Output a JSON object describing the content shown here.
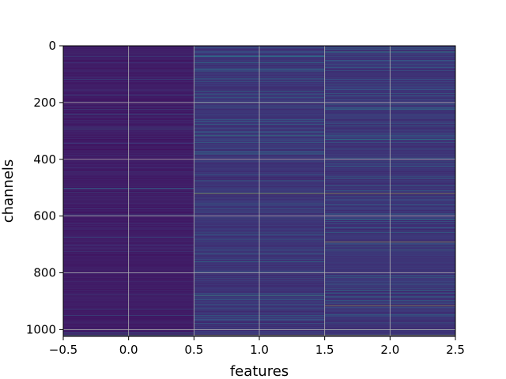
{
  "chart_data": {
    "type": "heatmap",
    "title": "",
    "xlabel": "features",
    "ylabel": "channels",
    "xlim": [
      -0.5,
      2.5
    ],
    "ylim": [
      1024,
      0
    ],
    "x_ticks": [
      -0.5,
      0.0,
      0.5,
      1.0,
      1.5,
      2.0,
      2.5
    ],
    "x_tick_labels": [
      "−0.5",
      "0.0",
      "0.5",
      "1.0",
      "1.5",
      "2.0",
      "2.5"
    ],
    "y_ticks": [
      0,
      200,
      400,
      600,
      800,
      1000
    ],
    "y_tick_labels": [
      "0",
      "200",
      "400",
      "600",
      "800",
      "1000"
    ],
    "grid": true,
    "colormap": "viridis",
    "n_channels": 1024,
    "columns": [
      0,
      1,
      2
    ],
    "column_base_level": [
      0.05,
      0.12,
      0.12
    ],
    "highlights": [
      {
        "channel": 20,
        "column": 1,
        "value": 0.4
      },
      {
        "channel": 20,
        "column": 2,
        "value": 0.55
      },
      {
        "channel": 65,
        "column": 2,
        "value": 0.35
      },
      {
        "channel": 160,
        "column": 1,
        "value": 0.5
      },
      {
        "channel": 175,
        "column": 2,
        "value": 0.45
      },
      {
        "channel": 315,
        "column": 1,
        "value": 0.55
      },
      {
        "channel": 320,
        "column": 2,
        "value": 0.4
      },
      {
        "channel": 515,
        "column": 0,
        "value": 0.3
      },
      {
        "channel": 520,
        "column": 1,
        "value": 0.95
      },
      {
        "channel": 520,
        "column": 2,
        "value": 0.95
      },
      {
        "channel": 560,
        "column": 1,
        "value": 0.4
      },
      {
        "channel": 595,
        "column": 0,
        "value": 0.35
      },
      {
        "channel": 600,
        "column": 1,
        "value": 0.5
      },
      {
        "channel": 600,
        "column": 2,
        "value": 0.45
      },
      {
        "channel": 690,
        "column": 2,
        "value": 0.95
      },
      {
        "channel": 720,
        "column": 2,
        "value": 0.55
      },
      {
        "channel": 760,
        "column": 1,
        "value": 0.5
      },
      {
        "channel": 880,
        "column": 1,
        "value": 0.6
      },
      {
        "channel": 915,
        "column": 2,
        "value": 0.95
      },
      {
        "channel": 1020,
        "column": 0,
        "value": 0.7
      },
      {
        "channel": 1020,
        "column": 1,
        "value": 0.9
      },
      {
        "channel": 1020,
        "column": 2,
        "value": 0.9
      }
    ]
  }
}
